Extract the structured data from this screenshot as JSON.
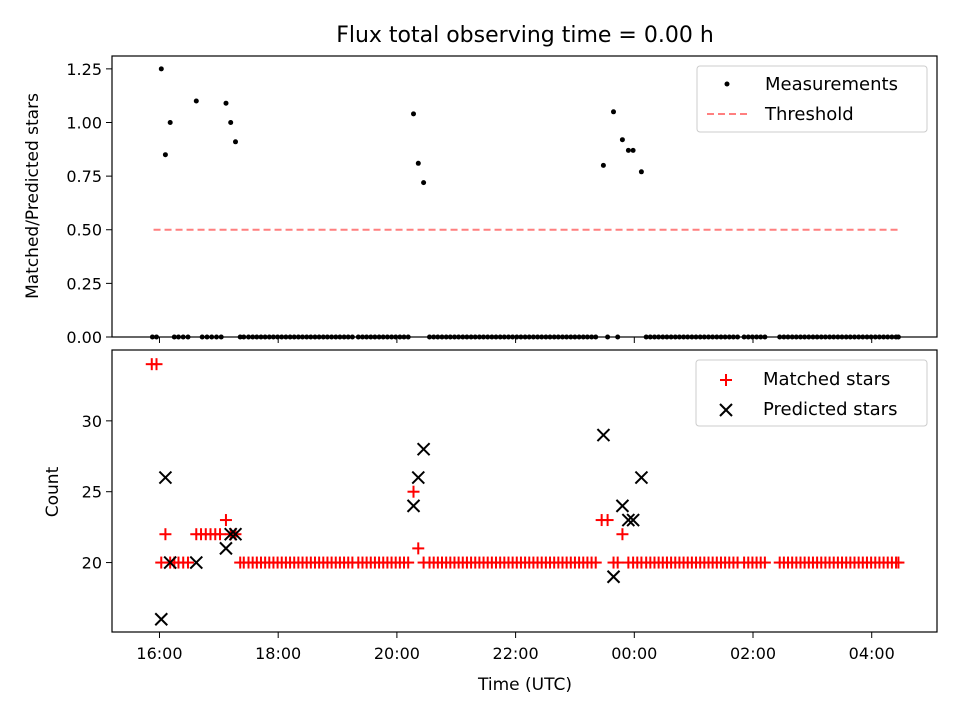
{
  "title": "Flux total observing time = 0.00 h",
  "colors": {
    "measurement": "#000000",
    "threshold": "#ff7f7f",
    "matched": "#ff0000",
    "predicted": "#000000"
  },
  "chart_data": [
    {
      "type": "scatter",
      "ylabel": "Matched/Predicted stars",
      "xlim_hours": [
        15.2,
        29.1
      ],
      "ylim": [
        0,
        1.31
      ],
      "yticks": [
        0,
        0.25,
        0.5,
        0.75,
        1.0,
        1.25
      ],
      "ytick_labels": [
        "0.00",
        "0.25",
        "0.50",
        "0.75",
        "1.00",
        "1.25"
      ],
      "grid": false,
      "legend_position": "top-right",
      "legend": [
        {
          "key": "measurements",
          "label": "Measurements"
        },
        {
          "key": "threshold",
          "label": "Threshold"
        }
      ],
      "threshold": {
        "value": 0.5,
        "x_range": [
          15.9,
          28.45
        ]
      },
      "measurement_points": [
        [
          16.03,
          1.25
        ],
        [
          16.1,
          0.85
        ],
        [
          16.18,
          1.0
        ],
        [
          16.62,
          1.1
        ],
        [
          17.12,
          1.09
        ],
        [
          17.2,
          1.0
        ],
        [
          17.28,
          0.91
        ],
        [
          20.28,
          1.04
        ],
        [
          20.36,
          0.81
        ],
        [
          20.45,
          0.72
        ],
        [
          23.48,
          0.8
        ],
        [
          23.65,
          1.05
        ],
        [
          23.8,
          0.92
        ],
        [
          23.9,
          0.87
        ],
        [
          23.98,
          0.87
        ],
        [
          24.12,
          0.77
        ]
      ],
      "zero_points": [
        15.88,
        15.95,
        16.25,
        16.32,
        16.4,
        16.48,
        16.72,
        16.8,
        16.88,
        16.96,
        17.04,
        17.36,
        17.42,
        17.5,
        17.57,
        17.64,
        17.71,
        17.78,
        17.85,
        17.92,
        17.99,
        18.06,
        18.13,
        18.2,
        18.27,
        18.34,
        18.41,
        18.48,
        18.55,
        18.62,
        18.69,
        18.76,
        18.83,
        18.9,
        18.97,
        19.04,
        19.11,
        19.18,
        19.25,
        19.35,
        19.42,
        19.49,
        19.56,
        19.63,
        19.7,
        19.77,
        19.84,
        19.91,
        19.98,
        20.05,
        20.12,
        20.19,
        20.55,
        20.62,
        20.69,
        20.76,
        20.83,
        20.9,
        20.97,
        21.04,
        21.11,
        21.18,
        21.25,
        21.32,
        21.39,
        21.46,
        21.53,
        21.6,
        21.67,
        21.74,
        21.81,
        21.88,
        21.95,
        22.02,
        22.09,
        22.16,
        22.23,
        22.3,
        22.37,
        22.44,
        22.51,
        22.58,
        22.65,
        22.72,
        22.79,
        22.86,
        22.93,
        23.0,
        23.07,
        23.14,
        23.21,
        23.28,
        23.35,
        23.55,
        23.72,
        24.2,
        24.27,
        24.34,
        24.41,
        24.48,
        24.55,
        24.62,
        24.69,
        24.76,
        24.83,
        24.9,
        24.97,
        25.04,
        25.11,
        25.18,
        25.25,
        25.32,
        25.39,
        25.46,
        25.53,
        25.6,
        25.67,
        25.74,
        25.85,
        25.92,
        25.99,
        26.06,
        26.13,
        26.2,
        26.45,
        26.52,
        26.59,
        26.66,
        26.73,
        26.8,
        26.87,
        26.94,
        27.01,
        27.08,
        27.15,
        27.22,
        27.29,
        27.36,
        27.43,
        27.5,
        27.57,
        27.64,
        27.71,
        27.78,
        27.85,
        27.92,
        27.99,
        28.06,
        28.13,
        28.2,
        28.27,
        28.34,
        28.41,
        28.45
      ]
    },
    {
      "type": "scatter",
      "ylabel": "Count",
      "xlabel": "Time (UTC)",
      "xlim_hours": [
        15.2,
        29.1
      ],
      "ylim": [
        15.1,
        35.0
      ],
      "yticks": [
        20,
        25,
        30
      ],
      "ytick_labels": [
        "20",
        "25",
        "30"
      ],
      "xticks_hours": [
        16,
        18,
        20,
        22,
        24,
        26,
        28
      ],
      "xtick_labels": [
        "16:00",
        "18:00",
        "20:00",
        "22:00",
        "00:00",
        "02:00",
        "04:00"
      ],
      "grid": false,
      "legend_position": "top-right",
      "legend": [
        {
          "key": "matched",
          "label": "Matched stars"
        },
        {
          "key": "predicted",
          "label": "Predicted stars"
        }
      ],
      "matched_special": [
        [
          15.87,
          34
        ],
        [
          15.95,
          34
        ],
        [
          16.1,
          22
        ],
        [
          16.62,
          22
        ],
        [
          16.7,
          22
        ],
        [
          16.78,
          22
        ],
        [
          16.86,
          22
        ],
        [
          16.94,
          22
        ],
        [
          17.02,
          22
        ],
        [
          17.12,
          23
        ],
        [
          17.2,
          22
        ],
        [
          17.28,
          22
        ],
        [
          20.28,
          25
        ],
        [
          20.36,
          21
        ],
        [
          23.45,
          23
        ],
        [
          23.55,
          23
        ],
        [
          23.8,
          22
        ]
      ],
      "matched_baseline_value": 20,
      "matched_baseline_x": [
        16.03,
        16.18,
        16.25,
        16.32,
        16.4,
        16.48,
        17.36,
        17.42,
        17.5,
        17.57,
        17.64,
        17.71,
        17.78,
        17.85,
        17.92,
        17.99,
        18.06,
        18.13,
        18.2,
        18.27,
        18.34,
        18.41,
        18.48,
        18.55,
        18.62,
        18.69,
        18.76,
        18.83,
        18.9,
        18.97,
        19.04,
        19.11,
        19.18,
        19.25,
        19.35,
        19.42,
        19.49,
        19.56,
        19.63,
        19.7,
        19.77,
        19.84,
        19.91,
        19.98,
        20.05,
        20.12,
        20.19,
        20.45,
        20.55,
        20.62,
        20.69,
        20.76,
        20.83,
        20.9,
        20.97,
        21.04,
        21.11,
        21.18,
        21.25,
        21.32,
        21.39,
        21.46,
        21.53,
        21.6,
        21.67,
        21.74,
        21.81,
        21.88,
        21.95,
        22.02,
        22.09,
        22.16,
        22.23,
        22.3,
        22.37,
        22.44,
        22.51,
        22.58,
        22.65,
        22.72,
        22.79,
        22.86,
        22.93,
        23.0,
        23.07,
        23.14,
        23.21,
        23.28,
        23.35,
        23.65,
        23.72,
        23.9,
        23.98,
        24.05,
        24.12,
        24.2,
        24.27,
        24.34,
        24.41,
        24.48,
        24.55,
        24.62,
        24.69,
        24.76,
        24.83,
        24.9,
        24.97,
        25.04,
        25.11,
        25.18,
        25.25,
        25.32,
        25.39,
        25.46,
        25.53,
        25.6,
        25.67,
        25.74,
        25.85,
        25.92,
        25.99,
        26.06,
        26.13,
        26.2,
        26.45,
        26.52,
        26.59,
        26.66,
        26.73,
        26.8,
        26.87,
        26.94,
        27.01,
        27.08,
        27.15,
        27.22,
        27.29,
        27.36,
        27.43,
        27.5,
        27.57,
        27.64,
        27.71,
        27.78,
        27.85,
        27.92,
        27.99,
        28.06,
        28.13,
        28.2,
        28.27,
        28.34,
        28.41,
        28.45
      ],
      "predicted_points": [
        [
          16.03,
          16
        ],
        [
          16.1,
          26
        ],
        [
          16.18,
          20
        ],
        [
          16.62,
          20
        ],
        [
          17.12,
          21
        ],
        [
          17.2,
          22
        ],
        [
          17.28,
          22
        ],
        [
          20.28,
          24
        ],
        [
          20.36,
          26
        ],
        [
          20.45,
          28
        ],
        [
          23.48,
          29
        ],
        [
          23.65,
          19
        ],
        [
          23.8,
          24
        ],
        [
          23.9,
          23
        ],
        [
          23.98,
          23
        ],
        [
          24.12,
          26
        ]
      ]
    }
  ]
}
